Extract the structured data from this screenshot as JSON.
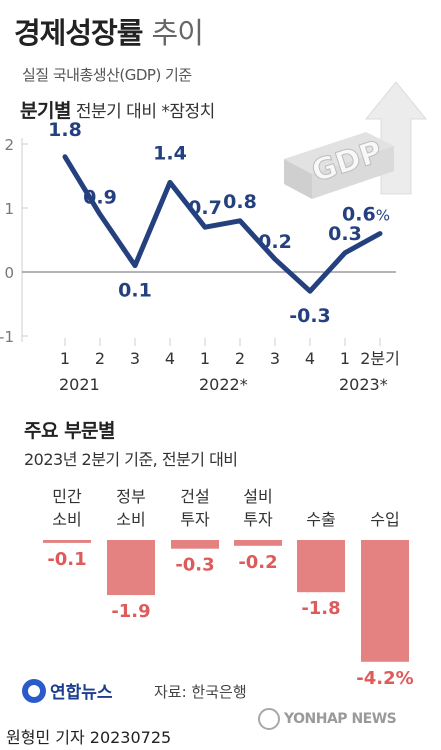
{
  "header": {
    "title_bold": "경제성장률",
    "title_light": "추이",
    "subtitle": "실질 국내총생산(GDP) 기준"
  },
  "quarterly": {
    "heading_bold": "분기별",
    "heading_rest": "전분기 대비  *잠정치",
    "graphic_label": "GDP"
  },
  "sectors": {
    "title": "주요 부문별",
    "subtitle": "2023년 2분기 기준, 전분기 대비"
  },
  "footer": {
    "logo": "연합뉴스",
    "source": "자료: 한국은행",
    "reporter": "원형민 기자  20230725",
    "watermark": "YONHAP NEWS"
  },
  "colors": {
    "line": "#25407f",
    "bar": "#e48282",
    "bar_label": "#dd5b5b",
    "line_label": "#25407f"
  },
  "chart_data": [
    {
      "type": "line",
      "title": "분기별",
      "categories": [
        "1",
        "2",
        "3",
        "4",
        "1",
        "2",
        "3",
        "4",
        "1",
        "2분기"
      ],
      "groups": [
        {
          "label": "2021",
          "from": 0,
          "to": 3
        },
        {
          "label": "2022*",
          "from": 4,
          "to": 7
        },
        {
          "label": "2023*",
          "from": 8,
          "to": 9
        }
      ],
      "values": [
        1.8,
        0.9,
        0.1,
        1.4,
        0.7,
        0.8,
        0.2,
        -0.3,
        0.3,
        0.6
      ],
      "value_labels": [
        "1.8",
        "0.9",
        "0.1",
        "1.4",
        "0.7",
        "0.8",
        "0.2",
        "-0.3",
        "0.3",
        "0.6%"
      ],
      "ylim": [
        -1,
        2
      ],
      "yticks": [
        "2",
        "1",
        "0",
        "-1"
      ],
      "grid": false,
      "zero_line": true
    },
    {
      "type": "bar",
      "title": "주요 부문별",
      "categories": [
        {
          "line1": "민간",
          "line2": "소비"
        },
        {
          "line1": "정부",
          "line2": "소비"
        },
        {
          "line1": "건설",
          "line2": "투자"
        },
        {
          "line1": "설비",
          "line2": "투자"
        },
        {
          "line1": "",
          "line2": "수출"
        },
        {
          "line1": "",
          "line2": "수입"
        }
      ],
      "values": [
        -0.1,
        -1.9,
        -0.3,
        -0.2,
        -1.8,
        -4.2
      ],
      "value_labels": [
        "-0.1",
        "-1.9",
        "-0.3",
        "-0.2",
        "-1.8",
        "-4.2%"
      ]
    }
  ]
}
